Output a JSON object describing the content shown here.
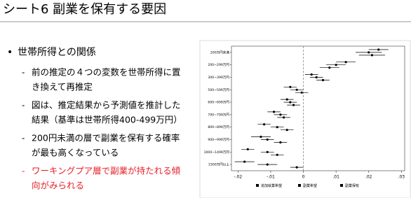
{
  "slide": {
    "title": "シート6  副業を保有する要因",
    "bullet": "世帯所得との関係",
    "subitems": [
      {
        "lines": [
          "前の推定の４つの変数を世帯所得に置",
          "き換えて再推定"
        ],
        "highlight": false
      },
      {
        "lines": [
          "図は、推定結果から予測値を推計した",
          "結果（基準は世帯所得400-499万円）"
        ],
        "highlight": false
      },
      {
        "lines": [
          "200円未満の層で副業を保有する確率",
          "が最も高くなっている"
        ],
        "highlight": false
      },
      {
        "lines": [
          "ワーキングプア層で副業が持たれる傾",
          "向がみられる"
        ],
        "highlight": true
      }
    ]
  },
  "chart_data": {
    "type": "coefplot",
    "categories": [
      "200万円未満",
      "200~299万円",
      "300~399万円",
      "500~599万円",
      "600~699万円",
      "700~799万円",
      "800~899万円",
      "900~999万円",
      "1000~1499万円",
      "1500万円以上"
    ],
    "series": [
      {
        "name": "追加就業希望",
        "color": "#000000",
        "values": [
          0.023,
          0.013,
          0.0025,
          -0.004,
          -0.005,
          -0.009,
          -0.012,
          -0.013,
          -0.017,
          -0.018
        ],
        "errors": [
          0.003,
          0.003,
          0.002,
          0.002,
          0.002,
          0.002,
          0.002,
          0.003,
          0.002,
          0.003
        ]
      },
      {
        "name": "副業希望",
        "color": "#000000",
        "values": [
          0.02,
          0.01,
          0.004,
          -0.002,
          -0.004,
          -0.007,
          -0.008,
          -0.011,
          -0.011,
          -0.011
        ],
        "errors": [
          0.004,
          0.003,
          0.002,
          0.002,
          0.002,
          0.002,
          0.002,
          0.002,
          0.002,
          0.003
        ]
      },
      {
        "name": "副業保有",
        "color": "#000000",
        "values": [
          0.021,
          0.008,
          0.006,
          -0.0005,
          -0.003,
          -0.006,
          -0.005,
          -0.007,
          -0.008,
          -0.002
        ],
        "errors": [
          0.004,
          0.003,
          0.002,
          0.002,
          0.002,
          0.002,
          0.002,
          0.002,
          0.002,
          0.002
        ]
      }
    ],
    "xlim": [
      -0.022,
      0.031
    ],
    "xticks": [
      {
        "value": -0.02,
        "label": "-.02"
      },
      {
        "value": -0.01,
        "label": "-.01"
      },
      0,
      {
        "value": 0.01,
        "label": ".01"
      },
      {
        "value": 0.02,
        "label": ".02"
      },
      {
        "value": 0.03,
        "label": ".03"
      }
    ]
  }
}
